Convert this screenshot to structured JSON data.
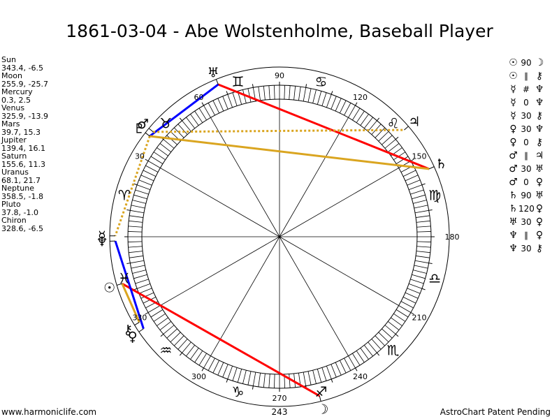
{
  "title": "1861-03-04 - Abe Wolstenholme, Baseball Player",
  "planets": [
    {
      "name": "Sun",
      "value": "343.4, -6.5",
      "lon": 343.4,
      "glyph": "☉",
      "color": "#000000"
    },
    {
      "name": "Moon",
      "value": "255.9, -25.7",
      "lon": 255.9,
      "glyph": "☽",
      "color": "#000000"
    },
    {
      "name": "Mercury",
      "value": "0.3, 2.5",
      "lon": 0.3,
      "glyph": "☿",
      "color": "#000000"
    },
    {
      "name": "Venus",
      "value": "325.9, -13.9",
      "lon": 325.9,
      "glyph": "♀",
      "color": "#000000"
    },
    {
      "name": "Mars",
      "value": "39.7, 15.3",
      "lon": 39.7,
      "glyph": "♂",
      "color": "#000000"
    },
    {
      "name": "Jupiter",
      "value": "139.4, 16.1",
      "lon": 139.4,
      "glyph": "♃",
      "color": "#000000"
    },
    {
      "name": "Saturn",
      "value": "155.6, 11.3",
      "lon": 155.6,
      "glyph": "♄",
      "color": "#000000"
    },
    {
      "name": "Uranus",
      "value": "68.1, 21.7",
      "lon": 68.1,
      "glyph": "♅",
      "color": "#000000"
    },
    {
      "name": "Neptune",
      "value": "358.5, -1.8",
      "lon": 358.5,
      "glyph": "♆",
      "color": "#000000"
    },
    {
      "name": "Pluto",
      "value": "37.8, -1.0",
      "lon": 37.8,
      "glyph": "♇",
      "color": "#000000"
    },
    {
      "name": "Chiron",
      "value": "328.6, -6.5",
      "lon": 328.6,
      "glyph": "⚷",
      "color": "#000000"
    }
  ],
  "aspects": [
    {
      "p1": "☉",
      "type": "90",
      "p2": "☽"
    },
    {
      "p1": "☉",
      "type": "∥",
      "p2": "⚷"
    },
    {
      "p1": "☿",
      "type": "#",
      "p2": "♆"
    },
    {
      "p1": "☿",
      "type": "0",
      "p2": "♆"
    },
    {
      "p1": "☿",
      "type": "30",
      "p2": "⚷"
    },
    {
      "p1": "♀",
      "type": "30",
      "p2": "♆"
    },
    {
      "p1": "♀",
      "type": "0",
      "p2": "⚷"
    },
    {
      "p1": "♂",
      "type": "∥",
      "p2": "♃"
    },
    {
      "p1": "♂",
      "type": "30",
      "p2": "♅"
    },
    {
      "p1": "♂",
      "type": "0",
      "p2": "♀"
    },
    {
      "p1": "♄",
      "type": "90",
      "p2": "♅"
    },
    {
      "p1": "♄",
      "type": "120",
      "p2": "♀"
    },
    {
      "p1": "♅",
      "type": "30",
      "p2": "♀"
    },
    {
      "p1": "♆",
      "type": "∥",
      "p2": "♀"
    },
    {
      "p1": "♆",
      "type": "30",
      "p2": "⚷"
    }
  ],
  "aspect_lines": [
    {
      "from": 343.4,
      "to": 255.9,
      "color": "#ff0000",
      "style": "solid"
    },
    {
      "from": 68.1,
      "to": 155.6,
      "color": "#ff0000",
      "style": "solid"
    },
    {
      "from": 68.1,
      "to": 37.8,
      "color": "#0000ff",
      "style": "solid"
    },
    {
      "from": 358.5,
      "to": 325.9,
      "color": "#0000ff",
      "style": "solid"
    },
    {
      "from": 37.8,
      "to": 155.6,
      "color": "#daa520",
      "style": "solid"
    },
    {
      "from": 39.7,
      "to": 139.4,
      "color": "#daa520",
      "style": "dotted"
    },
    {
      "from": 37.8,
      "to": 0.3,
      "color": "#daa520",
      "style": "dotted"
    },
    {
      "from": 343.4,
      "to": 328.6,
      "color": "#daa520",
      "style": "solid"
    }
  ],
  "signs": [
    {
      "glyph": "♈",
      "lon": 15
    },
    {
      "glyph": "♉",
      "lon": 45
    },
    {
      "glyph": "♊",
      "lon": 75
    },
    {
      "glyph": "♋",
      "lon": 105
    },
    {
      "glyph": "♌",
      "lon": 135
    },
    {
      "glyph": "♍",
      "lon": 165
    },
    {
      "glyph": "♎",
      "lon": 195
    },
    {
      "glyph": "♏",
      "lon": 225
    },
    {
      "glyph": "♐",
      "lon": 255
    },
    {
      "glyph": "♑",
      "lon": 285
    },
    {
      "glyph": "♒",
      "lon": 315
    },
    {
      "glyph": "♓",
      "lon": 345
    }
  ],
  "degree_labels": [
    "30",
    "60",
    "90",
    "120",
    "150",
    "180",
    "210",
    "240",
    "270",
    "300",
    "330"
  ],
  "moon_degree_label": "243",
  "footer_left": "www.harmoniclife.com",
  "footer_right": "AstroChart Patent Pending"
}
